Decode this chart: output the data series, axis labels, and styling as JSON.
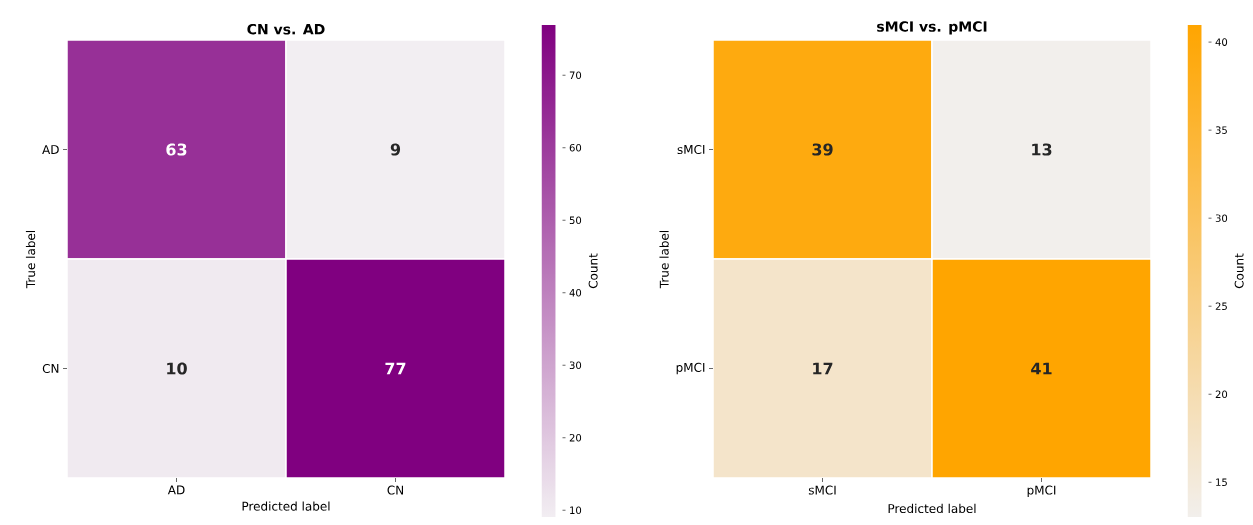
{
  "chart_data": [
    {
      "type": "heatmap",
      "title": "CN vs. AD",
      "xlabel": "Predicted label",
      "ylabel": "True label",
      "clabel": "Count",
      "categories": [
        "AD",
        "CN"
      ],
      "y_categories": [
        "AD",
        "CN"
      ],
      "cells": [
        [
          63,
          9
        ],
        [
          10,
          77
        ]
      ],
      "clim": [
        9,
        77
      ],
      "cticks": [
        10,
        20,
        30,
        40,
        50,
        60,
        70
      ],
      "colors": [
        "#f2eef2",
        "#800080"
      ],
      "data_labels": true
    },
    {
      "type": "heatmap",
      "title": "sMCI vs. pMCI",
      "xlabel": "Predicted label",
      "ylabel": "True label",
      "clabel": "Count",
      "categories": [
        "sMCI",
        "pMCI"
      ],
      "y_categories": [
        "sMCI",
        "pMCI"
      ],
      "cells": [
        [
          39,
          13
        ],
        [
          17,
          41
        ]
      ],
      "clim": [
        13,
        41
      ],
      "cticks": [
        15,
        20,
        25,
        30,
        35,
        40
      ],
      "colors": [
        "#f2efec",
        "#ffa500"
      ],
      "data_labels": true
    }
  ]
}
